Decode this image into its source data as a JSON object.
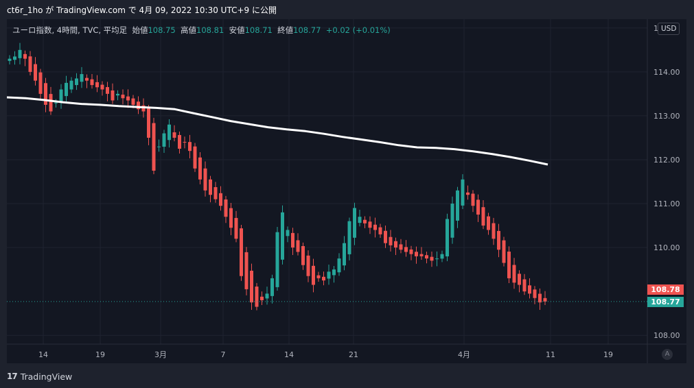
{
  "header": {
    "publish_text": "ct6r_1ho が TradingView.com で 4月 09, 2022 10:30 UTC+9 に公開"
  },
  "legend": {
    "symbol_text": "ユーロ指数, 4時間, TVC, 平均足",
    "open_label": "始値",
    "open_value": "108.75",
    "high_label": "高値",
    "high_value": "108.81",
    "low_label": "安値",
    "low_value": "108.71",
    "close_label": "終値",
    "close_value": "108.77",
    "change": "+0.02 (+0.01%)"
  },
  "toolbar": {
    "currency": "USD",
    "auto_label": "A"
  },
  "price_tags": {
    "upper": "108.78",
    "lower": "108.77"
  },
  "colors": {
    "up": "#26a69a",
    "down": "#ef5350",
    "ma": "#ffffff",
    "bg": "#131722"
  },
  "footer": {
    "brand": "TradingView"
  },
  "chart_data": {
    "type": "candlestick",
    "ylim": [
      107.8,
      115.2
    ],
    "y_ticks": [
      "115.00",
      "114.00",
      "113.00",
      "112.00",
      "111.00",
      "110.00",
      "108.00"
    ],
    "x_ticks": [
      "14",
      "19",
      "3月",
      "7",
      "14",
      "21",
      "4月",
      "11",
      "19"
    ],
    "last_price": 108.77,
    "series": [
      {
        "name": "price",
        "closes": [
          114.3,
          114.35,
          114.5,
          114.3,
          114.0,
          113.8,
          113.5,
          113.25,
          113.1,
          113.3,
          113.6,
          113.75,
          113.8,
          113.85,
          113.95,
          113.8,
          113.7,
          113.65,
          113.6,
          113.5,
          113.35,
          113.5,
          113.4,
          113.35,
          113.25,
          113.15,
          113.1,
          112.5,
          111.75,
          112.3,
          112.6,
          112.8,
          112.5,
          112.25,
          112.4,
          112.2,
          111.8,
          111.55,
          111.3,
          111.2,
          111.1,
          110.95,
          110.7,
          110.45,
          110.2,
          109.35,
          109.05,
          108.75,
          108.65,
          108.8,
          108.95,
          109.3,
          110.35,
          110.8,
          110.4,
          110.0,
          109.9,
          109.6,
          109.35,
          109.15,
          109.3,
          109.25,
          109.45,
          109.5,
          109.75,
          110.1,
          110.6,
          110.9,
          110.7,
          110.55,
          110.45,
          110.4,
          110.3,
          110.1,
          110.05,
          110.0,
          109.95,
          109.9,
          109.85,
          109.8,
          109.8,
          109.75,
          109.7,
          109.75,
          109.85,
          110.65,
          111.0,
          111.3,
          111.55,
          111.2,
          110.95,
          110.75,
          110.5,
          110.4,
          110.2,
          109.95,
          109.65,
          109.3,
          109.2,
          109.15,
          109.0,
          108.95,
          108.85,
          108.75,
          108.77
        ]
      },
      {
        "name": "ma",
        "values": [
          113.42,
          113.4,
          113.36,
          113.31,
          113.27,
          113.25,
          113.22,
          113.2,
          113.18,
          113.15,
          113.06,
          112.97,
          112.88,
          112.81,
          112.74,
          112.69,
          112.65,
          112.59,
          112.52,
          112.46,
          112.4,
          112.33,
          112.28,
          112.27,
          112.24,
          112.19,
          112.13,
          112.06,
          111.98,
          111.89
        ]
      }
    ]
  }
}
